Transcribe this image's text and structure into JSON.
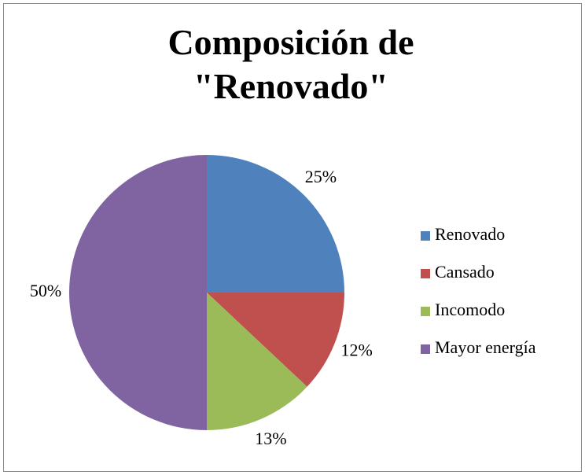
{
  "chart_data": {
    "type": "pie",
    "title": "Composición de \"Renovado\"",
    "categories": [
      "Renovado",
      "Cansado",
      "Incomodo",
      "Mayor energía"
    ],
    "values": [
      25,
      12,
      13,
      50
    ],
    "value_labels": [
      "25%",
      "12%",
      "13%",
      "50%"
    ],
    "colors": [
      "#4f81bd",
      "#c0504d",
      "#9bbb59",
      "#8064a2"
    ],
    "legend": "right"
  }
}
